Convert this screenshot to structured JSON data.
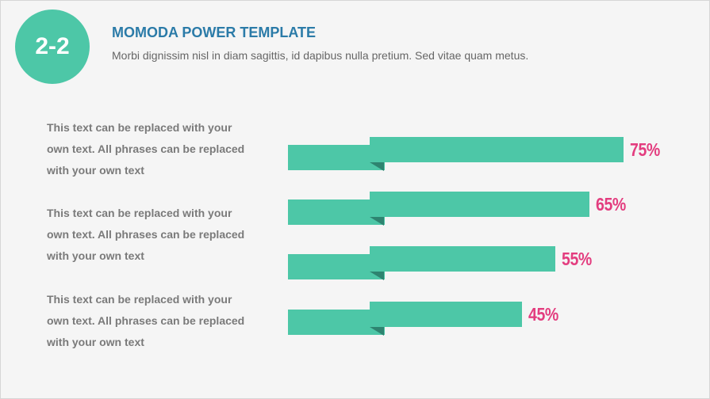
{
  "badge": {
    "text": "2-2"
  },
  "header": {
    "title": "MOMODA POWER TEMPLATE",
    "subtitle": "Morbi dignissim nisl in diam sagittis, id dapibus nulla pretium. Sed vitae quam metus."
  },
  "descriptions": [
    {
      "line1": "This text can be replaced with your",
      "line2": "own text. All phrases can be replaced",
      "line3": "with your own text"
    },
    {
      "line1": "This text can be replaced with your",
      "line2": "own text. All phrases can be replaced",
      "line3": "with your own text"
    },
    {
      "line1": "This text can be replaced with your",
      "line2": "own text. All phrases can be replaced",
      "line3": "with your own text"
    }
  ],
  "bars": [
    {
      "label": "75%",
      "value": 75
    },
    {
      "label": "65%",
      "value": 65
    },
    {
      "label": "55%",
      "value": 55
    },
    {
      "label": "45%",
      "value": 45
    }
  ],
  "colors": {
    "accent": "#4dc7a7",
    "fold": "#2e8470",
    "title": "#2b7ba8",
    "percent": "#e33d7f"
  }
}
